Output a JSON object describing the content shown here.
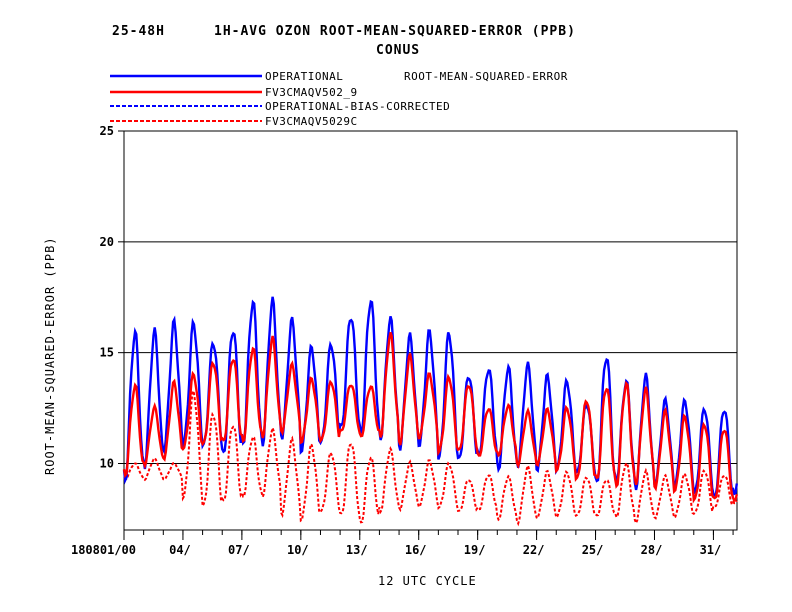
{
  "header": {
    "title_left": "25-48H",
    "title_main": "1H-AVG OZON ROOT-MEAN-SQUARED-ERROR (PPB)",
    "subtitle": "CONUS"
  },
  "legend": {
    "heading": "ROOT-MEAN-SQUARED-ERROR",
    "entries": [
      {
        "label": "OPERATIONAL",
        "color": "#0000ff",
        "style": "solid"
      },
      {
        "label": "FV3CMAQV502_9",
        "color": "#ff0000",
        "style": "solid"
      },
      {
        "label": "OPERATIONAL-BIAS-CORRECTED",
        "color": "#0000ff",
        "style": "dashed"
      },
      {
        "label": "FV3CMAQV5029C",
        "color": "#ff0000",
        "style": "dashed"
      }
    ]
  },
  "chart_data": {
    "type": "line",
    "title": "1H-AVG OZON ROOT-MEAN-SQUARED-ERROR (PPB)",
    "subtitle": "CONUS",
    "xlabel": "12 UTC CYCLE",
    "ylabel": "ROOT-MEAN-SQUARED-ERROR (PPB)",
    "ylim": [
      7,
      25
    ],
    "xlim": [
      1,
      32.2
    ],
    "grid": "horizontal",
    "yticks": [
      10,
      15,
      20,
      25
    ],
    "xticks": [
      {
        "day": 1,
        "label": "180801/00"
      },
      {
        "day": 4,
        "label": "04/"
      },
      {
        "day": 7,
        "label": "07/"
      },
      {
        "day": 10,
        "label": "10/"
      },
      {
        "day": 13,
        "label": "13/"
      },
      {
        "day": 16,
        "label": "16/"
      },
      {
        "day": 19,
        "label": "19/"
      },
      {
        "day": 22,
        "label": "22/"
      },
      {
        "day": 25,
        "label": "25/"
      },
      {
        "day": 28,
        "label": "28/"
      },
      {
        "day": 31,
        "label": "31/"
      }
    ],
    "daily_cycle": {
      "days": [
        1,
        2,
        3,
        4,
        5,
        6,
        7,
        8,
        9,
        10,
        11,
        12,
        13,
        14,
        15,
        16,
        17,
        18,
        19,
        20,
        21,
        22,
        23,
        24,
        25,
        26,
        27,
        28,
        29,
        30,
        31,
        32
      ],
      "series": [
        {
          "name": "OPERATIONAL",
          "color": "#0000ff",
          "style": "solid",
          "peak": [
            15.9,
            15.9,
            16.3,
            16.3,
            15.5,
            16.1,
            17.3,
            17.3,
            16.4,
            15.2,
            15.4,
            16.7,
            17.4,
            16.5,
            15.7,
            15.9,
            15.9,
            14.0,
            14.3,
            14.3,
            14.4,
            13.9,
            13.7,
            12.7,
            14.9,
            13.7,
            13.9,
            12.8,
            12.8,
            12.5,
            12.5,
            12.2
          ],
          "trough": [
            9.3,
            10.0,
            10.7,
            10.9,
            10.7,
            10.3,
            10.9,
            11.0,
            11.3,
            10.6,
            10.9,
            11.5,
            11.3,
            11.2,
            10.8,
            10.9,
            10.2,
            10.1,
            10.3,
            9.8,
            10.0,
            9.8,
            9.7,
            9.5,
            9.0,
            9.2,
            9.0,
            9.1,
            9.0,
            8.6,
            8.4,
            8.6
          ]
        },
        {
          "name": "FV3CMAQV502_9",
          "color": "#ff0000",
          "style": "solid",
          "peak": [
            13.5,
            12.5,
            13.6,
            14.0,
            14.6,
            14.8,
            15.2,
            15.6,
            14.4,
            13.8,
            13.7,
            13.6,
            13.5,
            15.8,
            14.8,
            14.0,
            13.9,
            13.6,
            12.5,
            12.6,
            12.3,
            12.4,
            12.5,
            12.9,
            13.5,
            13.6,
            13.3,
            12.3,
            12.1,
            11.8,
            11.6,
            10.5
          ],
          "trough": [
            9.5,
            10.0,
            10.3,
            10.7,
            10.8,
            10.9,
            11.0,
            11.3,
            11.5,
            11.0,
            11.0,
            11.4,
            11.2,
            11.3,
            11.0,
            11.2,
            10.5,
            10.5,
            10.3,
            10.4,
            10.0,
            10.0,
            9.7,
            9.2,
            9.2,
            9.0,
            9.2,
            9.0,
            8.8,
            8.3,
            8.3,
            8.3
          ]
        },
        {
          "name": "OPERATIONAL-BIAS-CORRECTED",
          "color": "#0000ff",
          "style": "dashed",
          "peak": [],
          "trough": []
        },
        {
          "name": "FV3CMAQV5029C",
          "color": "#ff0000",
          "style": "dashed",
          "peak": [
            10.0,
            10.2,
            10.0,
            13.2,
            12.3,
            11.8,
            11.2,
            11.5,
            11.0,
            10.8,
            10.5,
            11.0,
            10.3,
            10.6,
            10.0,
            10.1,
            10.0,
            9.3,
            9.5,
            9.4,
            9.8,
            9.6,
            9.6,
            9.4,
            9.3,
            10.0,
            9.6,
            9.4,
            9.5,
            9.7,
            9.5,
            9.0
          ],
          "trough": [
            9.3,
            9.3,
            9.3,
            8.5,
            8.0,
            8.2,
            8.5,
            8.6,
            7.8,
            7.5,
            7.8,
            7.6,
            7.3,
            7.9,
            8.0,
            8.1,
            8.0,
            7.8,
            7.9,
            7.5,
            7.4,
            7.6,
            7.6,
            7.6,
            7.6,
            7.6,
            7.4,
            7.6,
            7.6,
            7.7,
            8.0,
            8.2
          ]
        }
      ]
    }
  }
}
